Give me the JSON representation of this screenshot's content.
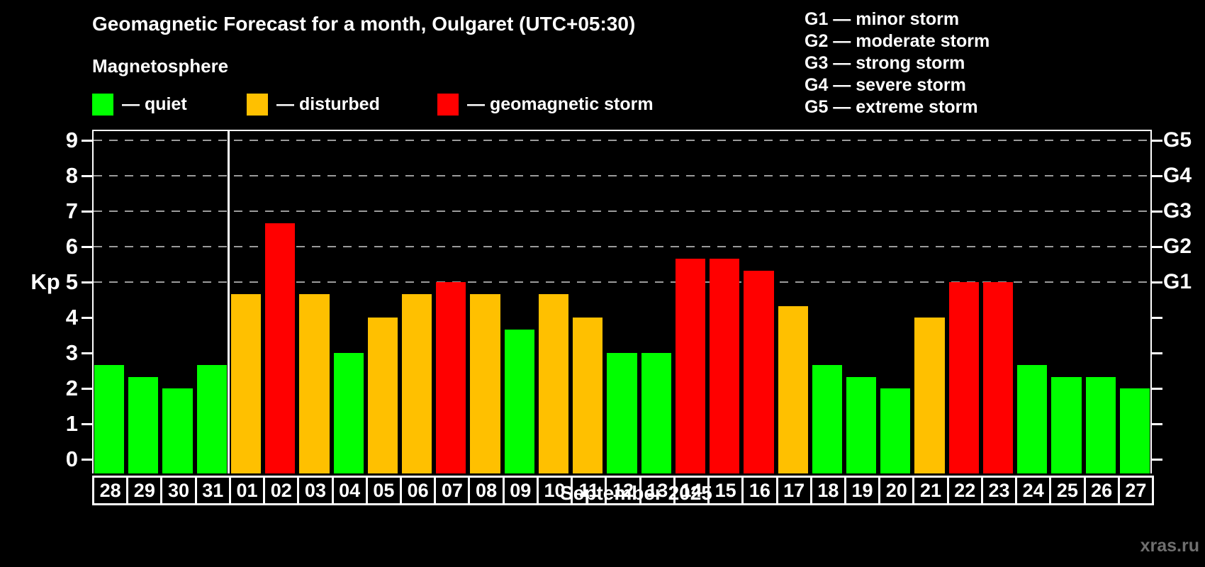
{
  "header": {
    "title": "Geomagnetic Forecast for a month, Oulgaret (UTC+05:30)",
    "subtitle": "Magnetosphere",
    "legend": [
      {
        "key": "quiet",
        "label": "— quiet",
        "color": "#00ff00"
      },
      {
        "key": "disturbed",
        "label": "— disturbed",
        "color": "#ffc000"
      },
      {
        "key": "storm",
        "label": "— geomagnetic storm",
        "color": "#ff0000"
      }
    ],
    "g_scale_legend": [
      "G1 — minor storm",
      "G2 — moderate storm",
      "G3 — strong storm",
      "G4 — severe storm",
      "G5 — extreme storm"
    ]
  },
  "footer": {
    "month_label": "September 2025",
    "watermark": "xras.ru"
  },
  "chart_data": {
    "type": "bar",
    "title": "Geomagnetic Forecast for a month, Oulgaret (UTC+05:30)",
    "ylabel": "Kp",
    "xlabel": "September 2025",
    "ylim": [
      0,
      9
    ],
    "yticks": [
      0,
      1,
      2,
      3,
      4,
      5,
      6,
      7,
      8,
      9
    ],
    "gridlines_at": [
      5,
      6,
      7,
      8,
      9
    ],
    "grid": "dashed horizontal at G-levels only",
    "legend_position": "top-left",
    "right_axis_labels": [
      {
        "value": 5,
        "label": "G1"
      },
      {
        "value": 6,
        "label": "G2"
      },
      {
        "value": 7,
        "label": "G3"
      },
      {
        "value": 8,
        "label": "G4"
      },
      {
        "value": 9,
        "label": "G5"
      }
    ],
    "month_separator_after_index": 3,
    "categories": [
      "28",
      "29",
      "30",
      "31",
      "01",
      "02",
      "03",
      "04",
      "05",
      "06",
      "07",
      "08",
      "09",
      "10",
      "11",
      "12",
      "13",
      "14",
      "15",
      "16",
      "17",
      "18",
      "19",
      "20",
      "21",
      "22",
      "23",
      "24",
      "25",
      "26",
      "27"
    ],
    "values": [
      2.67,
      2.33,
      2.0,
      2.67,
      4.67,
      6.67,
      4.67,
      3.0,
      4.0,
      4.67,
      5.0,
      4.67,
      3.67,
      4.67,
      4.0,
      3.0,
      3.0,
      5.67,
      5.67,
      5.33,
      4.33,
      2.67,
      2.33,
      2.0,
      4.0,
      5.0,
      5.0,
      2.67,
      2.33,
      2.33,
      2.0
    ],
    "statuses": [
      "quiet",
      "quiet",
      "quiet",
      "quiet",
      "disturbed",
      "storm",
      "disturbed",
      "quiet",
      "disturbed",
      "disturbed",
      "storm",
      "disturbed",
      "quiet",
      "disturbed",
      "disturbed",
      "quiet",
      "quiet",
      "storm",
      "storm",
      "storm",
      "disturbed",
      "quiet",
      "quiet",
      "quiet",
      "disturbed",
      "storm",
      "storm",
      "quiet",
      "quiet",
      "quiet",
      "quiet"
    ],
    "colors": {
      "quiet": "#00ff00",
      "disturbed": "#ffc000",
      "storm": "#ff0000"
    }
  }
}
